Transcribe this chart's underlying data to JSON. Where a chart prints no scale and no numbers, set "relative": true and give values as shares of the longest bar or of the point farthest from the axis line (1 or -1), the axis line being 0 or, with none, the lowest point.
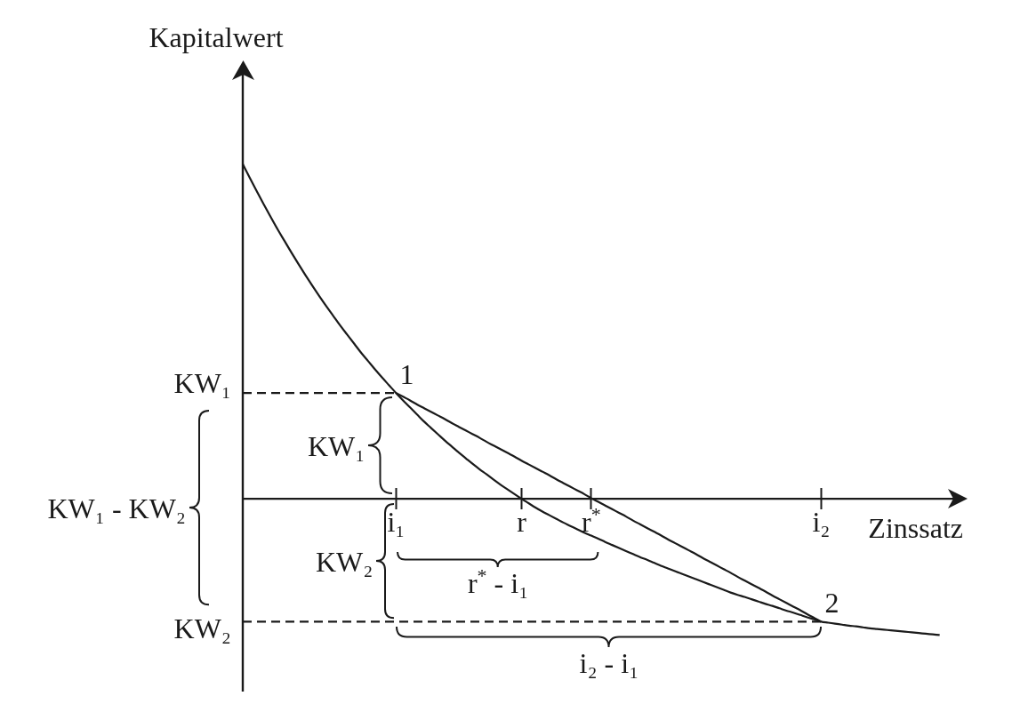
{
  "chart_data": {
    "type": "line",
    "relative": true,
    "xlabel": "Zinssatz",
    "ylabel": "Kapitalwert",
    "categories": [
      null,
      null,
      null,
      null,
      null,
      null,
      null,
      null,
      null,
      null,
      null,
      null,
      null,
      null,
      null,
      null,
      null,
      null,
      null,
      null,
      null,
      null,
      "i₁",
      null,
      null,
      null,
      null,
      null,
      null,
      null,
      null,
      null,
      null,
      null,
      null,
      null,
      null,
      null,
      null,
      null,
      "r",
      null,
      null,
      null,
      null,
      null,
      null,
      null,
      null,
      null,
      "r$^{*}$",
      null,
      null,
      null,
      null,
      null,
      null,
      null,
      null,
      null,
      null,
      null,
      null,
      null,
      null,
      null,
      null,
      null,
      null,
      null,
      null,
      null,
      null,
      null,
      null,
      null,
      null,
      null,
      null,
      null,
      null,
      null,
      null,
      "i₂",
      null,
      null,
      null,
      null,
      null,
      null,
      null,
      null,
      null,
      null,
      null,
      null,
      null,
      null,
      null,
      null,
      null,
      null,
      null,
      null,
      null
    ],
    "series": [
      {
        "color": "#1a1a1a",
        "values": [
          1,
          0.959,
          0.919,
          0.88,
          0.842,
          0.805,
          0.77,
          0.735,
          0.701,
          0.668,
          0.636,
          0.605,
          0.575,
          0.546,
          0.517,
          0.49,
          0.463,
          0.436,
          0.411,
          0.386,
          0.362,
          0.339,
          0.316,
          0.294,
          0.273,
          0.252,
          0.231,
          0.212,
          0.193,
          0.174,
          0.156,
          0.138,
          0.121,
          0.104,
          0.088,
          0.073,
          0.057,
          0.042,
          0.028,
          0.014,
          0,
          -0.013,
          -0.026,
          -0.038,
          -0.049,
          -0.06,
          -0.071,
          -0.081,
          -0.091,
          -0.101,
          -0.11,
          -0.119,
          -0.129,
          -0.138,
          -0.147,
          -0.156,
          -0.165,
          -0.174,
          -0.182,
          -0.191,
          -0.2,
          -0.208,
          -0.216,
          -0.224,
          -0.232,
          -0.24,
          -0.248,
          -0.256,
          -0.264,
          -0.272,
          -0.28,
          -0.287,
          -0.293,
          -0.3,
          -0.307,
          -0.314,
          -0.32,
          -0.327,
          -0.334,
          -0.34,
          -0.347,
          -0.354,
          -0.36,
          -0.367,
          -0.37,
          -0.373,
          -0.376,
          -0.379,
          -0.381,
          -0.384,
          -0.387,
          -0.389,
          -0.391,
          -0.393,
          -0.395,
          -0.397,
          -0.399,
          -0.401,
          -0.403,
          -0.405,
          -0.407,
          null,
          null,
          null,
          null
        ]
      },
      {
        "color": "#1a1a1a",
        "values": [
          null,
          null,
          null,
          null,
          null,
          null,
          null,
          null,
          null,
          null,
          null,
          null,
          null,
          null,
          null,
          null,
          null,
          null,
          null,
          null,
          null,
          null,
          0.316,
          0.305,
          0.294,
          0.282,
          0.271,
          0.26,
          0.249,
          0.238,
          0.226,
          0.215,
          0.204,
          0.193,
          0.182,
          0.17,
          0.159,
          0.148,
          0.137,
          0.126,
          0.114,
          0.103,
          0.092,
          0.081,
          0.07,
          0.058,
          0.047,
          0.036,
          0.025,
          0.014,
          0.002,
          -0.009,
          -0.02,
          -0.031,
          -0.042,
          -0.053,
          -0.065,
          -0.076,
          -0.087,
          -0.098,
          -0.109,
          -0.121,
          -0.132,
          -0.143,
          -0.154,
          -0.165,
          -0.177,
          -0.188,
          -0.199,
          -0.21,
          -0.221,
          -0.233,
          -0.244,
          -0.255,
          -0.266,
          -0.277,
          -0.289,
          -0.3,
          -0.311,
          -0.322,
          -0.333,
          -0.345,
          -0.356,
          -0.367,
          null,
          null,
          null,
          null,
          null,
          null,
          null,
          null,
          null,
          null,
          null,
          null,
          null,
          null,
          null,
          null,
          null,
          null,
          null,
          null,
          null
        ]
      },
      {
        "color": "#1a1a1a",
        "line_style": "dashed",
        "values": [
          0.316,
          0.316,
          0.316,
          0.316,
          0.316,
          0.316,
          0.316,
          0.316,
          0.316,
          0.316,
          0.316,
          0.316,
          0.316,
          0.316,
          0.316,
          0.316,
          0.316,
          0.316,
          0.316,
          0.316,
          0.316,
          0.316,
          0.316,
          null,
          null,
          null,
          null,
          null,
          null,
          null,
          null,
          null,
          null,
          null,
          null,
          null,
          null,
          null,
          null,
          null,
          null,
          null,
          null,
          null,
          null,
          null,
          null,
          null,
          null,
          null,
          null,
          null,
          null,
          null,
          null,
          null,
          null,
          null,
          null,
          null,
          null,
          null,
          null,
          null,
          null,
          null,
          null,
          null,
          null,
          null,
          null,
          null,
          null,
          null,
          null,
          null,
          null,
          null,
          null,
          null,
          null,
          null,
          null,
          null,
          null,
          null,
          null,
          null,
          null,
          null,
          null,
          null,
          null,
          null,
          null,
          null,
          null,
          null,
          null,
          null,
          null,
          null,
          null,
          null,
          null
        ]
      },
      {
        "color": "#1a1a1a",
        "line_style": "dashed",
        "values": [
          -0.367,
          -0.367,
          -0.367,
          -0.367,
          -0.367,
          -0.367,
          -0.367,
          -0.367,
          -0.367,
          -0.367,
          -0.367,
          -0.367,
          -0.367,
          -0.367,
          -0.367,
          -0.367,
          -0.367,
          -0.367,
          -0.367,
          -0.367,
          -0.367,
          -0.367,
          -0.367,
          -0.367,
          -0.367,
          -0.367,
          -0.367,
          -0.367,
          -0.367,
          -0.367,
          -0.367,
          -0.367,
          -0.367,
          -0.367,
          -0.367,
          -0.367,
          -0.367,
          -0.367,
          -0.367,
          -0.367,
          -0.367,
          -0.367,
          -0.367,
          -0.367,
          -0.367,
          -0.367,
          -0.367,
          -0.367,
          -0.367,
          -0.367,
          -0.367,
          -0.367,
          -0.367,
          -0.367,
          -0.367,
          -0.367,
          -0.367,
          -0.367,
          -0.367,
          -0.367,
          -0.367,
          -0.367,
          -0.367,
          -0.367,
          -0.367,
          -0.367,
          -0.367,
          -0.367,
          -0.367,
          -0.367,
          -0.367,
          -0.367,
          -0.367,
          -0.367,
          -0.367,
          -0.367,
          -0.367,
          -0.367,
          -0.367,
          -0.367,
          -0.367,
          -0.367,
          -0.367,
          -0.367,
          null,
          null,
          null,
          null,
          null,
          null,
          null,
          null,
          null,
          null,
          null,
          null,
          null,
          null,
          null,
          null,
          null,
          null,
          null,
          null,
          null
        ]
      }
    ],
    "annotations": [
      {
        "text": "1",
        "x": "i₁",
        "y": 0.316
      },
      {
        "text": "2",
        "x": "i₂",
        "y": -0.367
      },
      "KW₁",
      "KW₂",
      "KW₁",
      "KW₂",
      "KW₁ - KW₂",
      "r$^{*}$ - i₁",
      "i₂ - i₁"
    ]
  }
}
